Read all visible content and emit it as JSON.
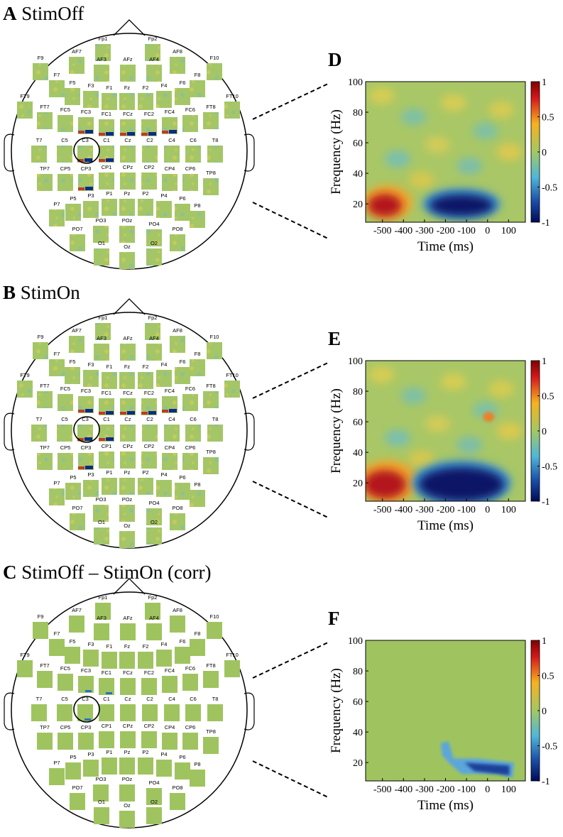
{
  "panels": [
    {
      "letter": "A",
      "title": "StimOff"
    },
    {
      "letter": "B",
      "title": "StimOn"
    },
    {
      "letter": "C",
      "title": "StimOff – StimOn (corr)"
    }
  ],
  "electrodes": [
    "Fp1",
    "Fp2",
    "AF7",
    "AF3",
    "AFz",
    "AF4",
    "AF8",
    "F9",
    "F10",
    "F7",
    "F5",
    "F3",
    "F1",
    "Fz",
    "F2",
    "F4",
    "F6",
    "F8",
    "FT9",
    "FT10",
    "FT7",
    "FC5",
    "FC3",
    "FC1",
    "FCz",
    "FC2",
    "FC4",
    "FC6",
    "FT8",
    "T7",
    "C5",
    "C3",
    "C1",
    "Cz",
    "C2",
    "C4",
    "C6",
    "T8",
    "TP7",
    "CP5",
    "CP3",
    "CP1",
    "CPz",
    "CP2",
    "CP4",
    "CP6",
    "TP8",
    "P7",
    "P5",
    "P3",
    "P1",
    "Pz",
    "P2",
    "P4",
    "P6",
    "P8",
    "PO7",
    "PO3",
    "POz",
    "PO4",
    "PO8",
    "O1",
    "Oz",
    "O2"
  ],
  "heatmaps": [
    {
      "letter": "D",
      "xlabel": "Time (ms)",
      "ylabel": "Frequency (Hz)",
      "xlim": [
        -580,
        180
      ],
      "ylim": [
        8,
        100
      ],
      "xticks": [
        -500,
        -400,
        -300,
        -200,
        -100,
        0,
        100
      ],
      "yticks": [
        20,
        40,
        60,
        80,
        100
      ],
      "clim": [
        -1,
        1
      ],
      "cticks": [
        1,
        0.5,
        0,
        -0.5,
        -1
      ]
    },
    {
      "letter": "E",
      "xlabel": "Time (ms)",
      "ylabel": "Frequency (Hz)",
      "xlim": [
        -580,
        180
      ],
      "ylim": [
        8,
        100
      ],
      "xticks": [
        -500,
        -400,
        -300,
        -200,
        -100,
        0,
        100
      ],
      "yticks": [
        20,
        40,
        60,
        80,
        100
      ],
      "clim": [
        -1,
        1
      ],
      "cticks": [
        1,
        0.5,
        0,
        -0.5,
        -1
      ]
    },
    {
      "letter": "F",
      "xlabel": "Time (ms)",
      "ylabel": "Frequency (Hz)",
      "xlim": [
        -580,
        180
      ],
      "ylim": [
        8,
        100
      ],
      "xticks": [
        -500,
        -400,
        -300,
        -200,
        -100,
        0,
        100
      ],
      "yticks": [
        20,
        40,
        60,
        80,
        100
      ],
      "clim": [
        -1,
        1
      ],
      "cticks": [
        1,
        0.5,
        0,
        -0.5,
        -1
      ]
    }
  ]
}
